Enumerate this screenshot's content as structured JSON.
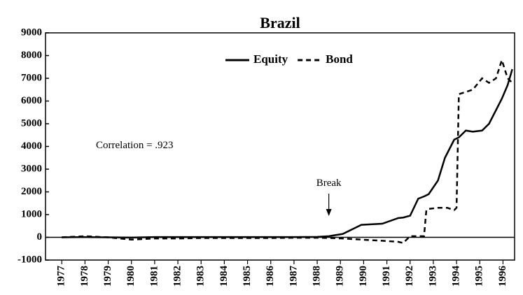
{
  "chart_data": {
    "type": "line",
    "title": "Brazil",
    "annotations": [
      "Correlation = .923",
      "Break"
    ],
    "x": [
      1977,
      1978,
      1979,
      1980,
      1981,
      1982,
      1983,
      1984,
      1985,
      1986,
      1987,
      1988,
      1988.5,
      1989.1,
      1989.9,
      1990.8,
      1991.5,
      1991.7,
      1992.0,
      1992.35,
      1992.6,
      1992.7,
      1992.8,
      1993.2,
      1993.5,
      1993.6,
      1993.9,
      1994.0,
      1994.1,
      1994.4,
      1994.7,
      1995.1,
      1995.4,
      1995.7,
      1995.95,
      1996.2,
      1996.4
    ],
    "series": [
      {
        "name": "Equity",
        "color": "#000000",
        "dash": "solid",
        "values": [
          0,
          10,
          0,
          -10,
          10,
          10,
          10,
          10,
          10,
          10,
          10,
          20,
          50,
          150,
          550,
          600,
          850,
          870,
          950,
          1700,
          1800,
          1850,
          1900,
          2500,
          3500,
          3700,
          4300,
          4350,
          4400,
          4700,
          4650,
          4700,
          5000,
          5600,
          6100,
          6700,
          7400
        ]
      },
      {
        "name": "Bond",
        "color": "#000000",
        "dash": "dashed",
        "values": [
          0,
          50,
          0,
          -100,
          -50,
          -50,
          -30,
          -30,
          -30,
          -30,
          -20,
          -20,
          -30,
          -50,
          -100,
          -150,
          -200,
          -250,
          50,
          50,
          50,
          1200,
          1250,
          1300,
          1300,
          1300,
          1200,
          1300,
          6300,
          6400,
          6500,
          7000,
          6800,
          7000,
          7800,
          7000,
          6800
        ]
      }
    ],
    "xlim": [
      1976.3,
      1996.5
    ],
    "xticks": [
      1977,
      1978,
      1979,
      1980,
      1981,
      1982,
      1983,
      1984,
      1985,
      1986,
      1987,
      1988,
      1989,
      1990,
      1991,
      1992,
      1993,
      1994,
      1995,
      1996
    ],
    "ylim": [
      -1000,
      9000
    ],
    "yticks": [
      -1000,
      0,
      1000,
      2000,
      3000,
      4000,
      5000,
      6000,
      7000,
      8000,
      9000
    ],
    "break_x": 1988.5,
    "legend": "top"
  }
}
